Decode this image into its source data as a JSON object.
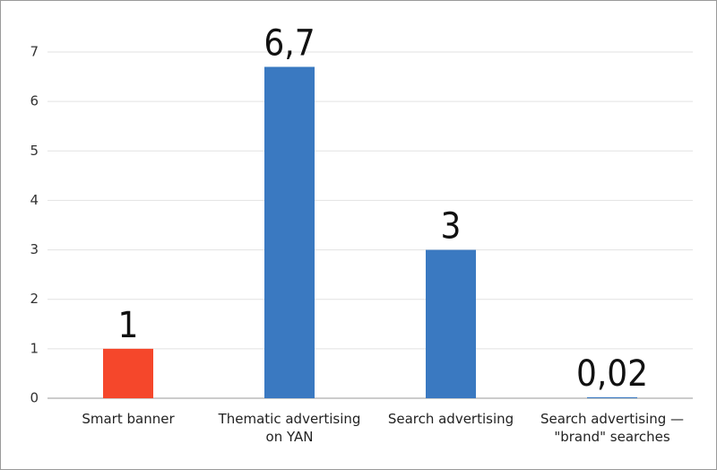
{
  "chart_data": {
    "type": "bar",
    "categories": [
      "Smart banner",
      "Thematic advertising on YAN",
      "Search advertising",
      "Search advertising — \"brand\" searches"
    ],
    "values": [
      1,
      6.7,
      3,
      0.02
    ],
    "value_labels": [
      "1",
      "6,7",
      "3",
      "0,02"
    ],
    "colors": [
      "#f5472b",
      "#3a79c1",
      "#3a79c1",
      "#3a79c1"
    ],
    "ylim": [
      0,
      7
    ],
    "yticks": [
      0,
      1,
      2,
      3,
      4,
      5,
      6,
      7
    ],
    "grid": true
  }
}
